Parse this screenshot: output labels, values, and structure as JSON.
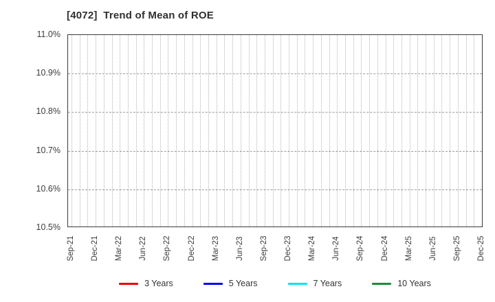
{
  "title": "[4072]  Trend of Mean of ROE",
  "chart_data": {
    "type": "line",
    "title": "[4072]  Trend of Mean of ROE",
    "x_tick_labels": [
      "Sep-21",
      "Dec-21",
      "Mar-22",
      "Jun-22",
      "Sep-22",
      "Dec-22",
      "Mar-23",
      "Jun-23",
      "Sep-23",
      "Dec-23",
      "Mar-24",
      "Jun-24",
      "Sep-24",
      "Dec-24",
      "Mar-25",
      "Jun-25",
      "Sep-25",
      "Dec-25"
    ],
    "x_minor_gridline_count": 52,
    "ylim": [
      10.5,
      11.0
    ],
    "y_ticks": [
      {
        "value": 11.0,
        "label": "11.0%"
      },
      {
        "value": 10.9,
        "label": "10.9%"
      },
      {
        "value": 10.8,
        "label": "10.8%"
      },
      {
        "value": 10.7,
        "label": "10.7%"
      },
      {
        "value": 10.6,
        "label": "10.6%"
      },
      {
        "value": 10.5,
        "label": "10.5%"
      }
    ],
    "y_gridline_values": [
      10.9,
      10.8,
      10.7,
      10.6
    ],
    "grid": "on",
    "legend_position": "bottom-center",
    "series": [
      {
        "name": "3 Years",
        "color": "#e8000b",
        "values": []
      },
      {
        "name": "5 Years",
        "color": "#0000f0",
        "values": []
      },
      {
        "name": "7 Years",
        "color": "#00e5ee",
        "values": []
      },
      {
        "name": "10 Years",
        "color": "#1d8b3a",
        "values": []
      }
    ]
  }
}
